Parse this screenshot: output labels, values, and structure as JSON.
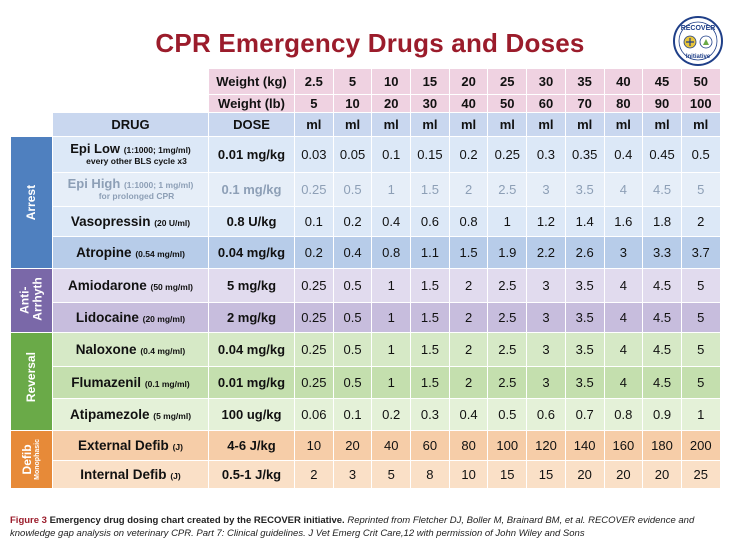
{
  "title": "CPR Emergency Drugs and Doses",
  "logo": {
    "icon": "recover-initiative-logo",
    "text_top": "RECOVER",
    "text_bottom": "Initiative"
  },
  "weight_kg_label": "Weight (kg)",
  "weight_lb_label": "Weight (lb)",
  "drug_header": "DRUG",
  "dose_header": "DOSE",
  "unit_label": "ml",
  "weights_kg": [
    "2.5",
    "5",
    "10",
    "15",
    "20",
    "25",
    "30",
    "35",
    "40",
    "45",
    "50"
  ],
  "weights_lb": [
    "5",
    "10",
    "20",
    "30",
    "40",
    "50",
    "60",
    "70",
    "80",
    "90",
    "100"
  ],
  "categories": {
    "arrest": "Arrest",
    "anti_line1": "Anti-",
    "anti_line2": "Arrhyth",
    "reversal": "Reversal",
    "defib": "Defib",
    "defib_sub": "Monophasic"
  },
  "rows": [
    {
      "drug": "Epi Low",
      "conc": "(1:1000; 1mg/ml)",
      "note": "every other BLS cycle x3",
      "dose": "0.01 mg/kg",
      "values": [
        "0.03",
        "0.05",
        "0.1",
        "0.15",
        "0.2",
        "0.25",
        "0.3",
        "0.35",
        "0.4",
        "0.45",
        "0.5"
      ]
    },
    {
      "drug": "Epi High",
      "conc": "(1:1000; 1 mg/ml)",
      "note": "for prolonged CPR",
      "dose": "0.1 mg/kg",
      "values": [
        "0.25",
        "0.5",
        "1",
        "1.5",
        "2",
        "2.5",
        "3",
        "3.5",
        "4",
        "4.5",
        "5"
      ]
    },
    {
      "drug": "Vasopressin",
      "conc": "(20 U/ml)",
      "dose": "0.8 U/kg",
      "values": [
        "0.1",
        "0.2",
        "0.4",
        "0.6",
        "0.8",
        "1",
        "1.2",
        "1.4",
        "1.6",
        "1.8",
        "2"
      ]
    },
    {
      "drug": "Atropine",
      "conc": "(0.54 mg/ml)",
      "dose": "0.04 mg/kg",
      "values": [
        "0.2",
        "0.4",
        "0.8",
        "1.1",
        "1.5",
        "1.9",
        "2.2",
        "2.6",
        "3",
        "3.3",
        "3.7"
      ]
    },
    {
      "drug": "Amiodarone",
      "conc": "(50 mg/ml)",
      "dose": "5 mg/kg",
      "values": [
        "0.25",
        "0.5",
        "1",
        "1.5",
        "2",
        "2.5",
        "3",
        "3.5",
        "4",
        "4.5",
        "5"
      ]
    },
    {
      "drug": "Lidocaine",
      "conc": "(20 mg/ml)",
      "dose": "2 mg/kg",
      "values": [
        "0.25",
        "0.5",
        "1",
        "1.5",
        "2",
        "2.5",
        "3",
        "3.5",
        "4",
        "4.5",
        "5"
      ]
    },
    {
      "drug": "Naloxone",
      "conc": "(0.4 mg/ml)",
      "dose": "0.04 mg/kg",
      "values": [
        "0.25",
        "0.5",
        "1",
        "1.5",
        "2",
        "2.5",
        "3",
        "3.5",
        "4",
        "4.5",
        "5"
      ]
    },
    {
      "drug": "Flumazenil",
      "conc": "(0.1 mg/ml)",
      "dose": "0.01 mg/kg",
      "values": [
        "0.25",
        "0.5",
        "1",
        "1.5",
        "2",
        "2.5",
        "3",
        "3.5",
        "4",
        "4.5",
        "5"
      ]
    },
    {
      "drug": "Atipamezole",
      "conc": "(5 mg/ml)",
      "dose": "100 ug/kg",
      "values": [
        "0.06",
        "0.1",
        "0.2",
        "0.3",
        "0.4",
        "0.5",
        "0.6",
        "0.7",
        "0.8",
        "0.9",
        "1"
      ]
    },
    {
      "drug": "External Defib",
      "conc": "(J)",
      "dose": "4-6 J/kg",
      "values": [
        "10",
        "20",
        "40",
        "60",
        "80",
        "100",
        "120",
        "140",
        "160",
        "180",
        "200"
      ]
    },
    {
      "drug": "Internal Defib",
      "conc": "(J)",
      "dose": "0.5-1 J/kg",
      "values": [
        "2",
        "3",
        "5",
        "8",
        "10",
        "15",
        "15",
        "20",
        "20",
        "20",
        "25"
      ]
    }
  ],
  "caption": {
    "figure": "Figure 3",
    "lead": "Emergency drug dosing chart created by the RECOVER initiative.",
    "rest": "Reprinted from Fletcher DJ, Boller M, Brainard BM, et al. RECOVER evidence and knowledge gap analysis on veterinary CPR. Part 7: Clinical guidelines. J Vet Emerg Crit Care,12 with permission of John Wiley and Sons"
  },
  "colors": {
    "title": "#9b1c2b",
    "arrest": "#4f80bf",
    "anti_arrhythmic": "#7a68a8",
    "reversal": "#6aaa48",
    "defib": "#e78a38"
  }
}
